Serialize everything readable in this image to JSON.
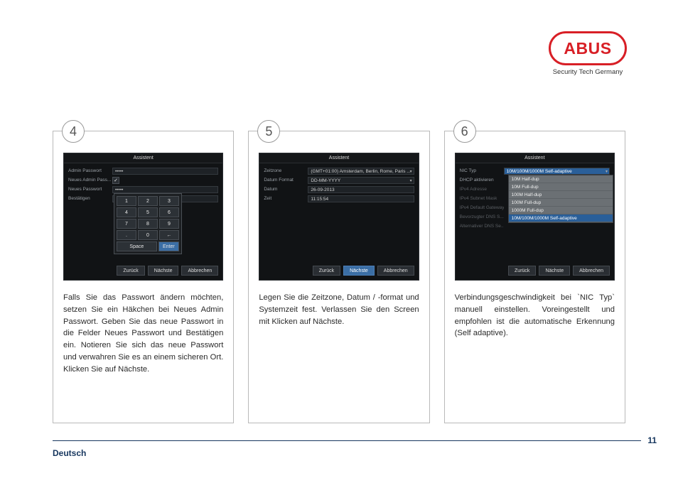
{
  "logo": {
    "text": "ABUS",
    "tagline": "Security Tech Germany"
  },
  "footer": {
    "page": "11",
    "language": "Deutsch"
  },
  "assistant_title": "Assistent",
  "buttons": {
    "back": "Zurück",
    "next": "Nächste",
    "cancel": "Abbrechen"
  },
  "steps": [
    {
      "num": "4",
      "desc": "Falls Sie das Passwort ändern möch­ten, setzen Sie ein Häkchen bei Neu­es Admin Passwort. Geben Sie das neue Passwort in die Felder Neues Passwort und Bestätigen ein. Notie­ren Sie sich das neue Passwort und verwahren Sie es an einem sicheren Ort. Klicken Sie auf Nächste.",
      "fields": {
        "admin_pw_label": "Admin Passwort",
        "admin_pw_value": "•••••",
        "new_admin_label": "Neues Admin Pass...",
        "new_pw_label": "Neues Passwort",
        "new_pw_value": "•••••",
        "confirm_label": "Bestätigen",
        "confirm_value": "•••••"
      },
      "keypad": {
        "r1": [
          "1",
          "2",
          "3"
        ],
        "r2": [
          "4",
          "5",
          "6"
        ],
        "r3": [
          "7",
          "8",
          "9"
        ],
        "r4": [
          ".",
          "0",
          "←"
        ],
        "space": "Space",
        "enter": "Enter"
      }
    },
    {
      "num": "5",
      "desc": "Legen Sie die Zeitzone, Datum / -for­mat und Systemzeit fest. Verlassen Sie den Screen mit Klicken auf Nächste.",
      "fields": {
        "tz_label": "Zeitzone",
        "tz_value": "(GMT+01:00) Amsterdam, Berlin, Rome, Paris ...",
        "df_label": "Datum Format",
        "df_value": "DD-MM-YYYY",
        "date_label": "Datum",
        "date_value": "26-09-2013",
        "time_label": "Zeit",
        "time_value": "11:15:54"
      }
    },
    {
      "num": "6",
      "desc": "Verbindungsgeschwindigkeit bei `NIC Typ` manuell einstellen. Vorein­gestellt und empfohlen ist die auto­matische Erkennung (Self adaptive).",
      "fields": {
        "nic_label": "NIC Typ",
        "nic_value": "10M/100M/1000M Self-adaptive",
        "dhcp_label": "DHCP aktivieren",
        "ipv4_addr_label": "IPv4 Adresse",
        "ipv4_mask_label": "IPv4 Subnet Mask",
        "ipv4_gw_label": "IPv4 Default Gateway",
        "dns1_label": "Bevorzugter DNS S...",
        "dns2_label": "Alternativer DNS Se..."
      },
      "options": [
        "10M Half-dup",
        "10M Full-dup",
        "100M Half-dup",
        "100M Full-dup",
        "1000M Full-dup",
        "10M/100M/1000M Self-adaptive"
      ]
    }
  ]
}
